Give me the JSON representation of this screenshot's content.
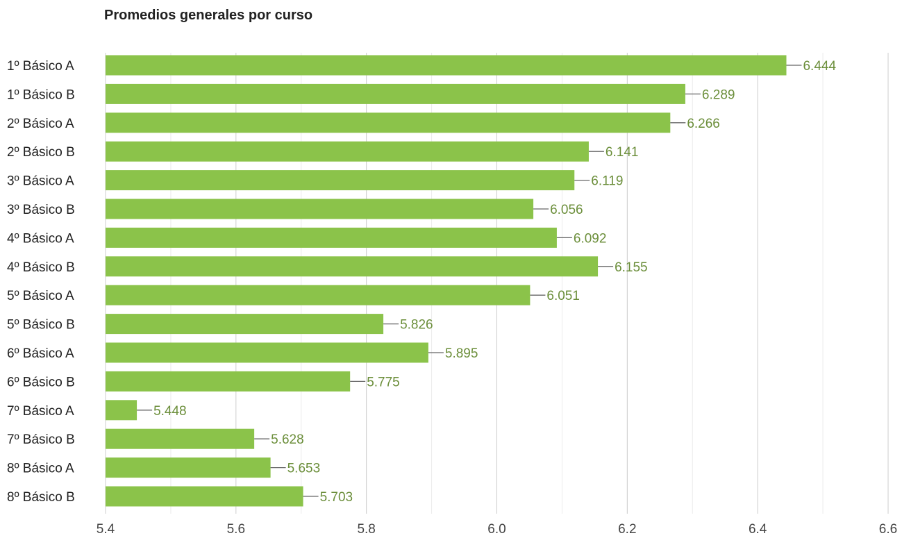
{
  "chart_data": {
    "type": "bar",
    "orientation": "horizontal",
    "title": "Promedios generales por curso",
    "xlabel": "",
    "ylabel": "",
    "xlim": [
      5.4,
      6.6
    ],
    "x_ticks": [
      "5.4",
      "5.6",
      "5.8",
      "6.0",
      "6.2",
      "6.4",
      "6.6"
    ],
    "grid": true,
    "legend": "none",
    "bar_color": "#8bc34a",
    "label_color": "#6b8e3a",
    "categories": [
      "1º Básico A",
      "1º Básico B",
      "2º Básico A",
      "2º Básico B",
      "3º Básico A",
      "3º Básico B",
      "4º Básico A",
      "4º Básico B",
      "5º Básico A",
      "5º Básico B",
      "6º Básico A",
      "6º Básico B",
      "7º Básico A",
      "7º Básico B",
      "8º Básico A",
      "8º Básico B"
    ],
    "values": [
      6.444,
      6.289,
      6.266,
      6.141,
      6.119,
      6.056,
      6.092,
      6.155,
      6.051,
      5.826,
      5.895,
      5.775,
      5.448,
      5.628,
      5.653,
      5.703
    ],
    "value_labels": [
      "6.444",
      "6.289",
      "6.266",
      "6.141",
      "6.119",
      "6.056",
      "6.092",
      "6.155",
      "6.051",
      "5.826",
      "5.895",
      "5.775",
      "5.448",
      "5.628",
      "5.653",
      "5.703"
    ]
  }
}
